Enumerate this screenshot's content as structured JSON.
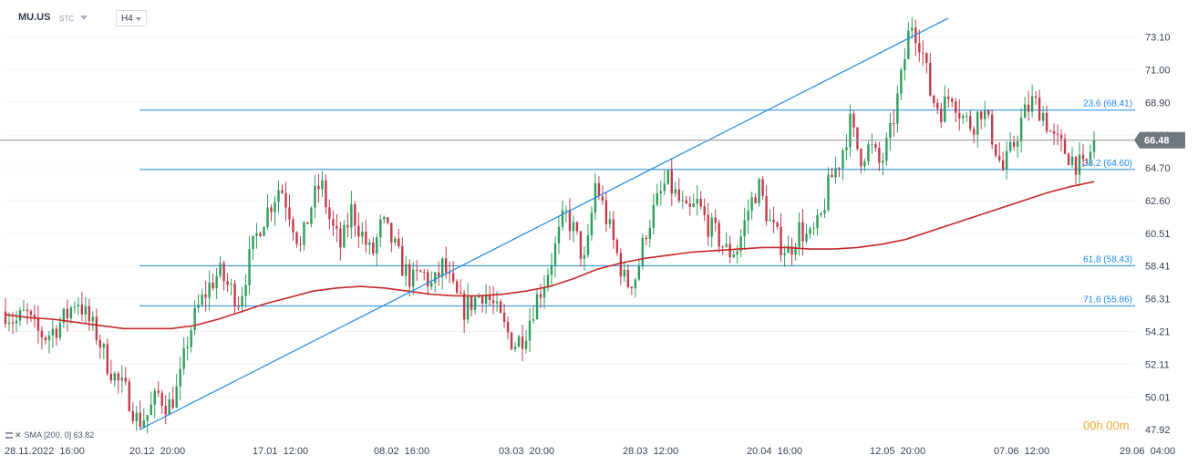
{
  "header": {
    "symbol": "MU.US",
    "instrument_type": "STC",
    "timeframe": "H4"
  },
  "indicator": {
    "label": "SMA [200, 0]",
    "value": "63.82"
  },
  "timer": "00h 00m",
  "colors": {
    "up": "#2e9e5b",
    "down": "#c23b4c",
    "sma": "#c62828",
    "fib": "#1e88e5",
    "price_tag": "#6f7780"
  },
  "chart_data": {
    "type": "candlestick",
    "title": "",
    "ylim": [
      47.4,
      75.0
    ],
    "current_price": 66.48,
    "price_axis_ticks": [
      "73.10",
      "71.00",
      "68.90",
      "66.80",
      "64.70",
      "62.60",
      "60.51",
      "58.41",
      "56.31",
      "54.21",
      "52.11",
      "50.01",
      "47.92"
    ],
    "time_axis_ticks": [
      "28.11.2022  16:00",
      "20.12  20:00",
      "17.01  12:00",
      "08.02  16:00",
      "03.03  20:00",
      "28.03  12:00",
      "20.04  16:00",
      "12.05  20:00",
      "07.06  12:00",
      "29.06  04:00"
    ],
    "fibonacci_levels": [
      {
        "label": "23.6 (68.41)",
        "value": 68.41
      },
      {
        "label": "38.2 (64.60)",
        "value": 64.6
      },
      {
        "label": "61.8 (58.43)",
        "value": 58.43
      },
      {
        "label": "71.6 (55.86)",
        "value": 55.86
      }
    ],
    "trendline": {
      "from_price": 47.92,
      "to_price": 74.3
    },
    "price_path": [
      55.5,
      54.8,
      55.4,
      54.2,
      53.9,
      54.5,
      55.2,
      56.4,
      55.1,
      54.0,
      52.2,
      51.0,
      50.2,
      48.4,
      48.9,
      50.2,
      49.4,
      50.6,
      54.0,
      55.8,
      57.1,
      58.0,
      57.0,
      56.2,
      58.9,
      61.0,
      62.3,
      63.6,
      61.8,
      59.5,
      62.2,
      63.8,
      61.0,
      59.6,
      62.0,
      60.5,
      59.0,
      61.2,
      60.0,
      58.4,
      57.4,
      58.0,
      57.0,
      58.5,
      56.8,
      55.6,
      56.2,
      56.8,
      55.8,
      54.5,
      53.4,
      54.0,
      56.0,
      57.5,
      59.5,
      61.8,
      60.5,
      58.4,
      63.8,
      61.6,
      59.4,
      57.2,
      57.8,
      60.8,
      62.4,
      63.9,
      62.8,
      61.6,
      62.4,
      61.1,
      60.3,
      59.2,
      59.6,
      62.0,
      63.6,
      61.4,
      60.0,
      59.3,
      60.8,
      60.1,
      61.1,
      63.8,
      65.2,
      67.6,
      65.4,
      66.1,
      64.8,
      66.9,
      70.2,
      74.2,
      72.6,
      69.2,
      68.4,
      69.6,
      68.0,
      67.4,
      68.6,
      66.7,
      64.5,
      66.0,
      68.0,
      69.0,
      68.2,
      66.5,
      65.9,
      65.2,
      64.5,
      66.48
    ],
    "sma_200_path": [
      55.3,
      55.1,
      55.0,
      54.8,
      54.6,
      54.4,
      54.4,
      54.4,
      54.6,
      55.0,
      55.5,
      56.0,
      56.4,
      56.8,
      57.0,
      57.1,
      57.0,
      56.8,
      56.6,
      56.5,
      56.5,
      56.6,
      56.8,
      57.1,
      57.6,
      58.2,
      58.6,
      58.9,
      59.1,
      59.3,
      59.4,
      59.5,
      59.6,
      59.6,
      59.5,
      59.5,
      59.6,
      59.8,
      60.1,
      60.6,
      61.1,
      61.6,
      62.1,
      62.6,
      63.1,
      63.5,
      63.82
    ]
  }
}
